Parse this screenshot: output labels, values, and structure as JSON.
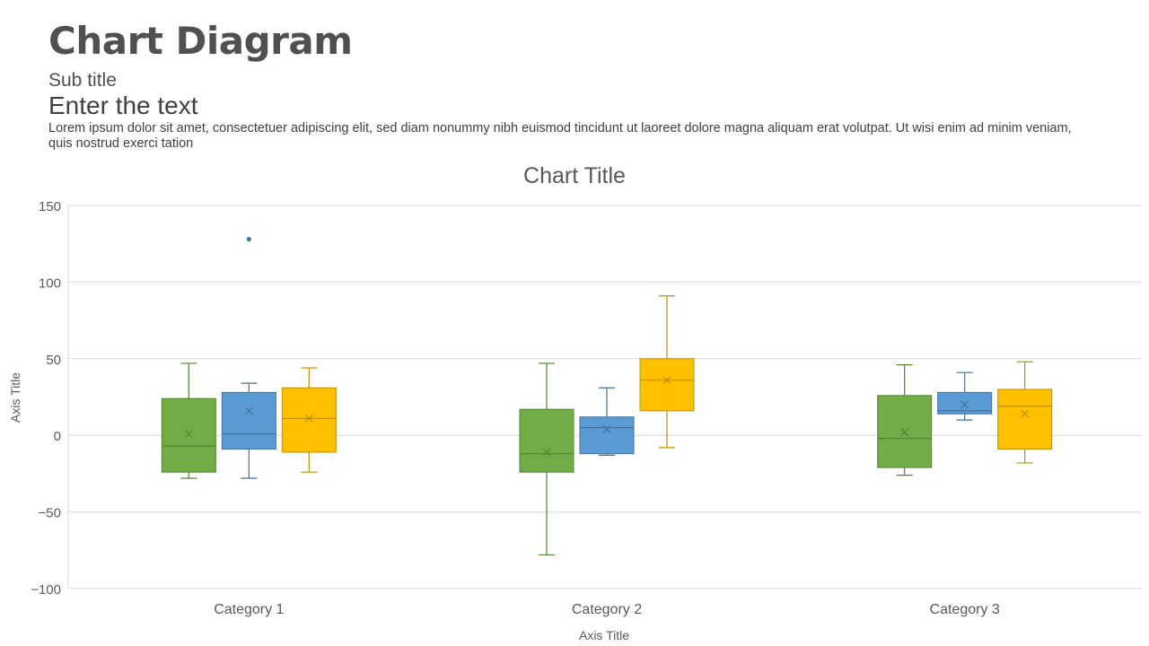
{
  "header": {
    "title": "Chart Diagram",
    "subtitle": "Sub title",
    "heading": "Enter the text",
    "body": "Lorem ipsum dolor sit amet, consectetuer adipiscing elit, sed diam nonummy nibh euismod tincidunt ut laoreet dolore magna aliquam erat volutpat. Ut wisi enim ad minim veniam, quis nostrud exerci tation"
  },
  "chart_data": {
    "type": "box",
    "title": "Chart Title",
    "xlabel": "Axis Title",
    "ylabel": "Axis Title",
    "ylim": [
      -100,
      150
    ],
    "yticks": [
      -100,
      -50,
      0,
      50,
      100,
      150
    ],
    "ytick_labels": [
      "−100",
      "−50",
      "0",
      "50",
      "100",
      "150"
    ],
    "grid": true,
    "legend": "none",
    "categories": [
      "Category 1",
      "Category 2",
      "Category 3"
    ],
    "series": [
      {
        "color": "#70AD47",
        "stroke": "#548235",
        "boxes": [
          {
            "min": -28,
            "q1": -24,
            "median": -7,
            "q3": 24,
            "max": 47,
            "mean": 1,
            "outliers": []
          },
          {
            "min": -78,
            "q1": -24,
            "median": -12,
            "q3": 17,
            "max": 47,
            "mean": -11,
            "outliers": []
          },
          {
            "min": -26,
            "q1": -21,
            "median": -2,
            "q3": 26,
            "max": 46,
            "mean": 2,
            "outliers": []
          }
        ]
      },
      {
        "color": "#5B9BD5",
        "stroke": "#41719C",
        "boxes": [
          {
            "min": -28,
            "q1": -9,
            "median": 1,
            "q3": 28,
            "max": 34,
            "mean": 16,
            "outliers": [
              128
            ]
          },
          {
            "min": -13,
            "q1": -12,
            "median": 5,
            "q3": 12,
            "max": 31,
            "mean": 4,
            "outliers": []
          },
          {
            "min": 10,
            "q1": 14,
            "median": 16,
            "q3": 28,
            "max": 41,
            "mean": 20,
            "outliers": []
          }
        ]
      },
      {
        "color": "#FFC000",
        "stroke": "#BF9000",
        "boxes": [
          {
            "min": -24,
            "q1": -11,
            "median": 11,
            "q3": 31,
            "max": 44,
            "mean": 11,
            "outliers": []
          },
          {
            "min": -8,
            "q1": 16,
            "median": 36,
            "q3": 50,
            "max": 91,
            "mean": 36,
            "outliers": []
          },
          {
            "min": -18,
            "q1": -9,
            "median": 19,
            "q3": 30,
            "max": 48,
            "mean": 14,
            "outliers": []
          }
        ]
      }
    ]
  }
}
